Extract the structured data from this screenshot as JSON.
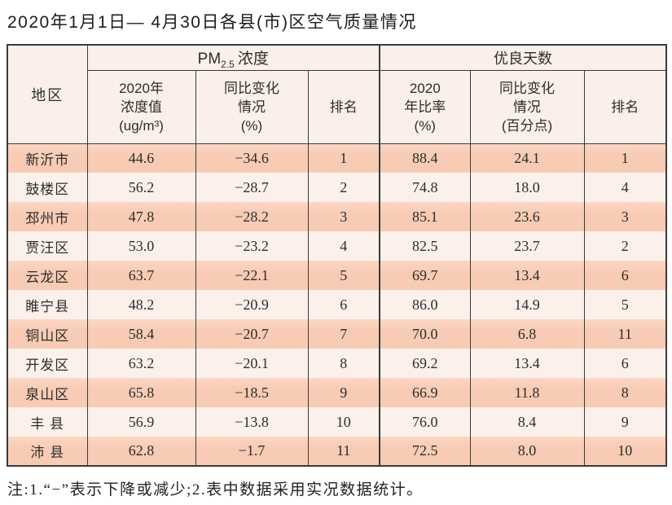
{
  "page": {
    "title": "2020年1月1日— 4月30日各县(市)区空气质量情况",
    "note": "注:1.“−”表示下降或减少;2.表中数据采用实况数据统计。"
  },
  "colors": {
    "row_odd": "#f8cbb4",
    "row_even": "#fcf1ea",
    "header_bg": "#fbf0e9",
    "border": "#3b3b3b",
    "text": "#2d2d2d"
  },
  "table": {
    "region_header": "地区",
    "pm_group": {
      "main": "PM",
      "sub": "2.5",
      "rest": "浓度"
    },
    "good_group": "优良天数",
    "subheaders": {
      "pm_value_line1": "2020年",
      "pm_value_line2": "浓度值",
      "pm_value_unit": "(ug/m³)",
      "pm_change_line1": "同比变化",
      "pm_change_line2": "情况",
      "pm_change_unit": "(%)",
      "pm_rank": "排名",
      "good_ratio_line1": "2020",
      "good_ratio_line2": "年比率",
      "good_ratio_unit": "(%)",
      "good_change_line1": "同比变化",
      "good_change_line2": "情况",
      "good_change_unit": "(百分点)",
      "good_rank": "排名"
    },
    "rows": [
      {
        "region": "新沂市",
        "pm_value": "44.6",
        "pm_change": "−34.6",
        "pm_rank": "1",
        "good_ratio": "88.4",
        "good_change": "24.1",
        "good_rank": "1"
      },
      {
        "region": "鼓楼区",
        "pm_value": "56.2",
        "pm_change": "−28.7",
        "pm_rank": "2",
        "good_ratio": "74.8",
        "good_change": "18.0",
        "good_rank": "4"
      },
      {
        "region": "邳州市",
        "pm_value": "47.8",
        "pm_change": "−28.2",
        "pm_rank": "3",
        "good_ratio": "85.1",
        "good_change": "23.6",
        "good_rank": "3"
      },
      {
        "region": "贾汪区",
        "pm_value": "53.0",
        "pm_change": "−23.2",
        "pm_rank": "4",
        "good_ratio": "82.5",
        "good_change": "23.7",
        "good_rank": "2"
      },
      {
        "region": "云龙区",
        "pm_value": "63.7",
        "pm_change": "−22.1",
        "pm_rank": "5",
        "good_ratio": "69.7",
        "good_change": "13.4",
        "good_rank": "6"
      },
      {
        "region": "睢宁县",
        "pm_value": "48.2",
        "pm_change": "−20.9",
        "pm_rank": "6",
        "good_ratio": "86.0",
        "good_change": "14.9",
        "good_rank": "5"
      },
      {
        "region": "铜山区",
        "pm_value": "58.4",
        "pm_change": "−20.7",
        "pm_rank": "7",
        "good_ratio": "70.0",
        "good_change": "6.8",
        "good_rank": "11"
      },
      {
        "region": "开发区",
        "pm_value": "63.2",
        "pm_change": "−20.1",
        "pm_rank": "8",
        "good_ratio": "69.2",
        "good_change": "13.4",
        "good_rank": "6"
      },
      {
        "region": "泉山区",
        "pm_value": "65.8",
        "pm_change": "−18.5",
        "pm_rank": "9",
        "good_ratio": "66.9",
        "good_change": "11.8",
        "good_rank": "8"
      },
      {
        "region": "丰 县",
        "pm_value": "56.9",
        "pm_change": "−13.8",
        "pm_rank": "10",
        "good_ratio": "76.0",
        "good_change": "8.4",
        "good_rank": "9"
      },
      {
        "region": "沛 县",
        "pm_value": "62.8",
        "pm_change": "−1.7",
        "pm_rank": "11",
        "good_ratio": "72.5",
        "good_change": "8.0",
        "good_rank": "10"
      }
    ]
  }
}
